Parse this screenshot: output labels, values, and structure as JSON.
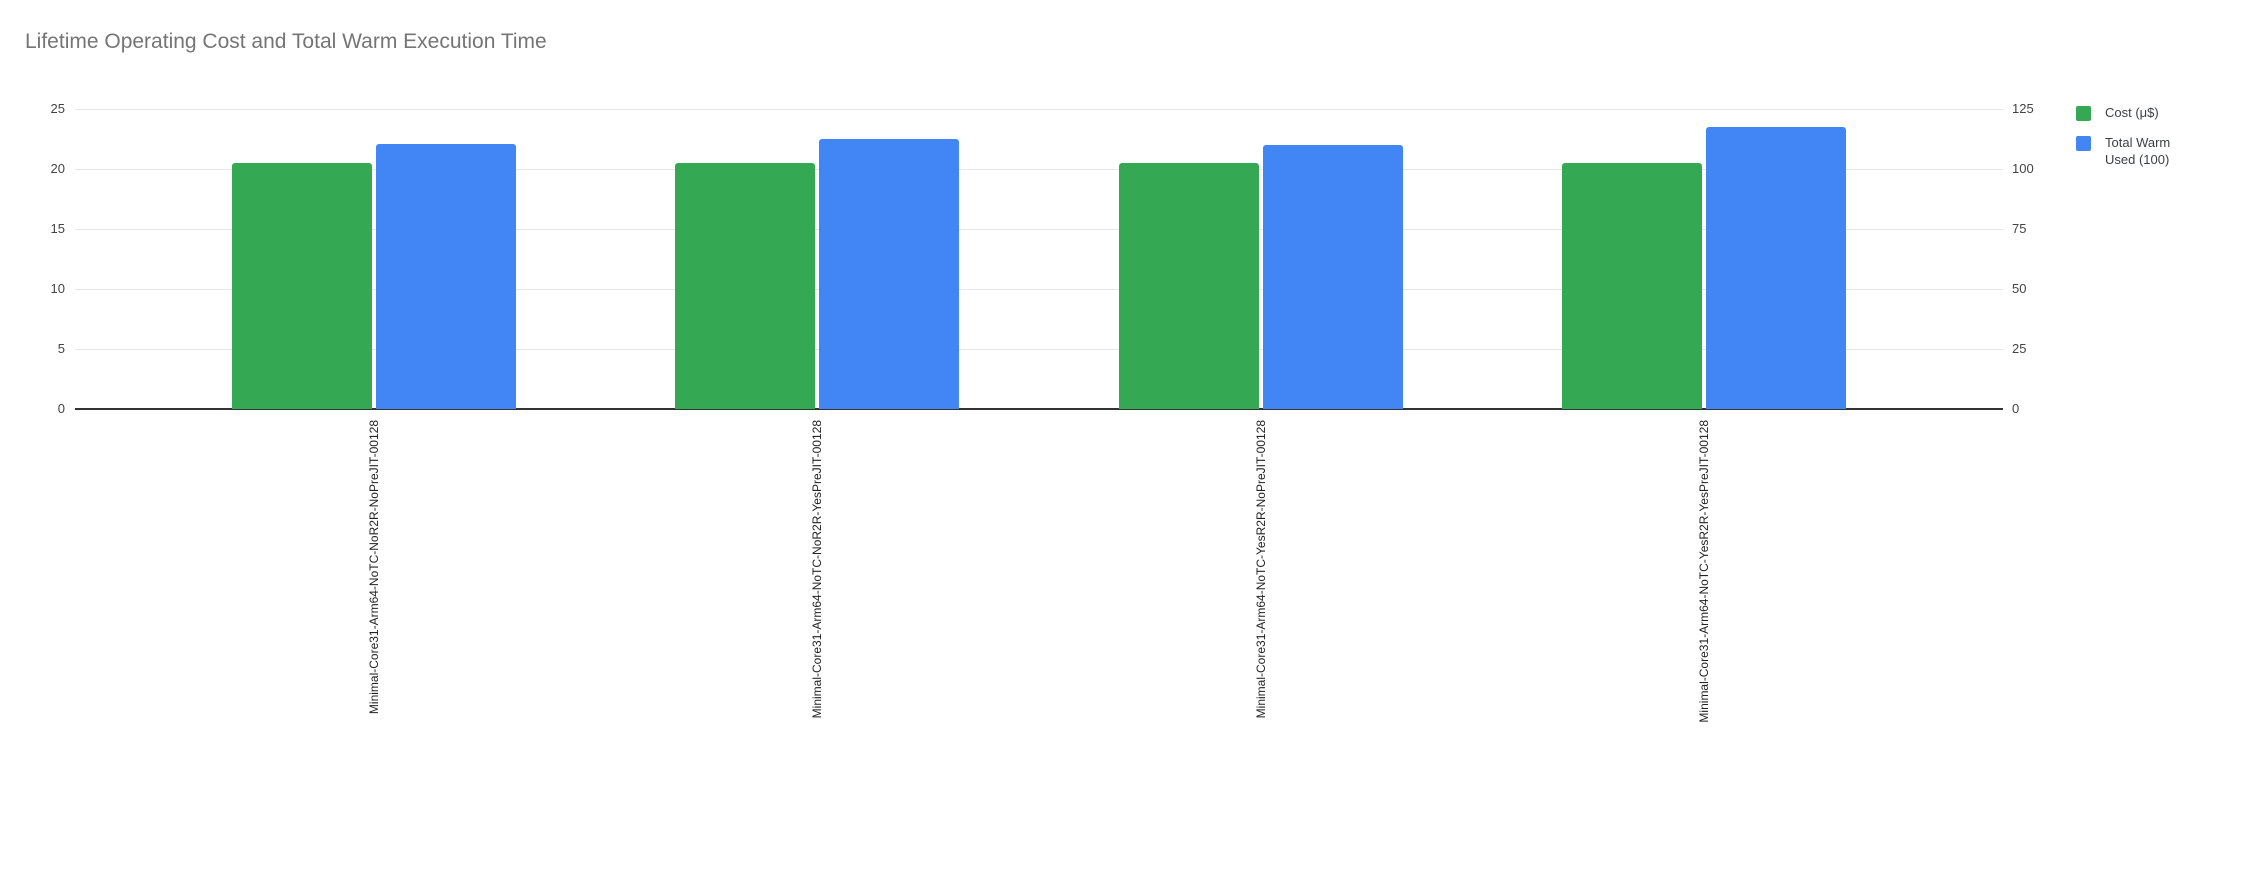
{
  "chart_data": {
    "type": "bar",
    "title": "Lifetime Operating Cost and Total Warm Execution Time",
    "categories": [
      "Minimal-Core31-Arm64-NoTC-NoR2R-NoPreJIT-00128",
      "Minimal-Core31-Arm64-NoTC-NoR2R-YesPreJIT-00128",
      "Minimal-Core31-Arm64-NoTC-YesR2R-NoPreJIT-00128",
      "Minimal-Core31-Arm64-NoTC-YesR2R-YesPreJIT-00128"
    ],
    "series": [
      {
        "name": "Cost (μ$)",
        "axis": "left",
        "color": "#34A853",
        "values": [
          20.5,
          20.5,
          20.5,
          20.5
        ]
      },
      {
        "name": "Total Warm Used (100)",
        "axis": "right",
        "color": "#4285F4",
        "values": [
          110.4,
          112.5,
          110.0,
          117.4
        ]
      }
    ],
    "left_axis": {
      "ticks": [
        0,
        5,
        10,
        15,
        20,
        25
      ],
      "max": 25
    },
    "right_axis": {
      "ticks": [
        0,
        25,
        50,
        75,
        100,
        125
      ],
      "max": 125
    },
    "grid": true,
    "legend_position": "right",
    "x_labels_rotated_degrees": 90
  },
  "colors": {
    "title": "#757575",
    "axis_labels": "#444444",
    "x_labels": "#222222",
    "gridline": "#e6e6e6",
    "baseline": "#333333",
    "background": "#ffffff"
  }
}
